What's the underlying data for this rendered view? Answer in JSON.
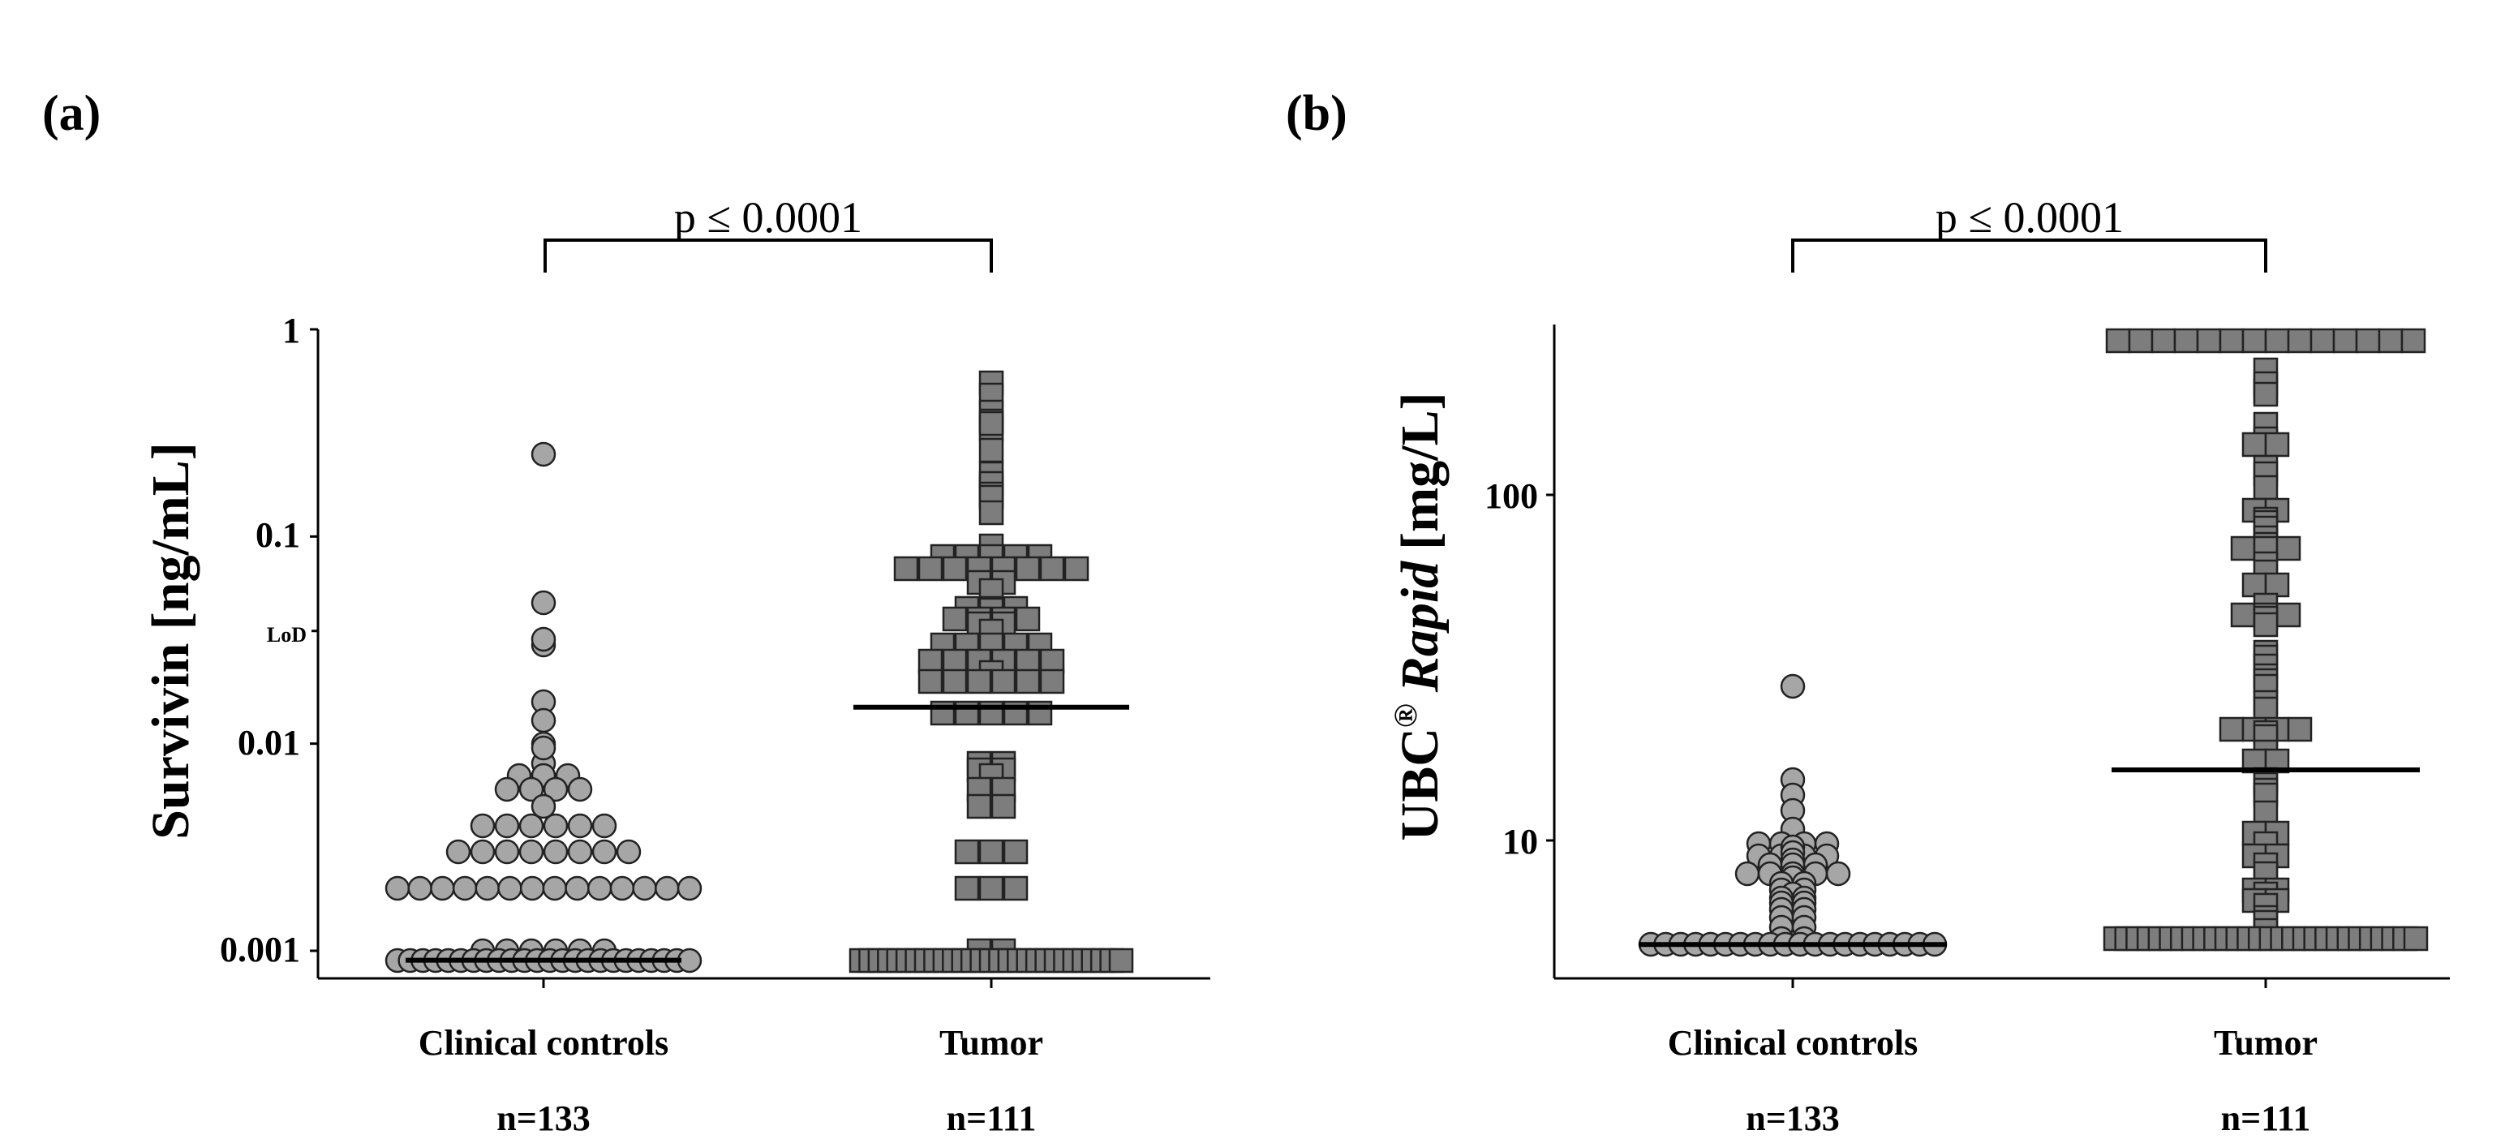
{
  "chart_data": [
    {
      "type": "scatter",
      "panel_label": "(a)",
      "yscale": "log",
      "ylim": [
        0.0008,
        1
      ],
      "ylabel": "Survivin [ng/mL]",
      "yticks": [
        {
          "value": 1,
          "label": "1"
        },
        {
          "value": 0.1,
          "label": "0.1"
        },
        {
          "value": 0.01,
          "label": "0.01"
        },
        {
          "value": 0.001,
          "label": "0.001"
        }
      ],
      "lod": {
        "value": 0.035,
        "label": "LoD"
      },
      "significance": "p ≤ 0.0001",
      "groups": [
        {
          "name": "Clinical controls",
          "n_label": "n=133",
          "marker": "circle",
          "median": 0.0009,
          "values": [
            0.25,
            0.048,
            0.03,
            0.032,
            0.016,
            0.013,
            0.01,
            0.008,
            0.0095,
            0.007,
            0.007,
            0.007,
            0.006,
            0.006,
            0.006,
            0.006,
            0.005,
            0.004,
            0.004,
            0.004,
            0.004,
            0.004,
            0.004,
            0.003,
            0.003,
            0.003,
            0.003,
            0.003,
            0.003,
            0.003,
            0.003,
            0.002,
            0.002,
            0.002,
            0.002,
            0.002,
            0.002,
            0.002,
            0.002,
            0.002,
            0.002,
            0.002,
            0.002,
            0.002,
            0.002,
            0.001,
            0.001,
            0.001,
            0.001,
            0.001,
            0.001,
            0.0009,
            0.0009,
            0.0009,
            0.0009,
            0.0009,
            0.0009,
            0.0009,
            0.0009,
            0.0009,
            0.0009,
            0.0009,
            0.0009,
            0.0009,
            0.0009,
            0.0009,
            0.0009,
            0.0009,
            0.0009,
            0.0009,
            0.0009,
            0.0009,
            0.0009,
            0.0009,
            0.0009
          ]
        },
        {
          "name": "Tumor",
          "n_label": "n=111",
          "marker": "square",
          "median": 0.015,
          "values": [
            0.55,
            0.48,
            0.4,
            0.36,
            0.33,
            0.35,
            0.26,
            0.2,
            0.17,
            0.18,
            0.16,
            0.155,
            0.13,
            0.09,
            0.08,
            0.08,
            0.08,
            0.08,
            0.08,
            0.07,
            0.07,
            0.07,
            0.07,
            0.07,
            0.07,
            0.07,
            0.07,
            0.06,
            0.06,
            0.055,
            0.045,
            0.045,
            0.044,
            0.045,
            0.04,
            0.04,
            0.04,
            0.04,
            0.038,
            0.038,
            0.035,
            0.03,
            0.03,
            0.03,
            0.03,
            0.03,
            0.025,
            0.025,
            0.025,
            0.025,
            0.025,
            0.025,
            0.022,
            0.02,
            0.02,
            0.02,
            0.02,
            0.02,
            0.02,
            0.014,
            0.014,
            0.014,
            0.014,
            0.014,
            0.008,
            0.008,
            0.0075,
            0.0075,
            0.007,
            0.006,
            0.006,
            0.005,
            0.005,
            0.003,
            0.003,
            0.003,
            0.002,
            0.002,
            0.002,
            0.001,
            0.001,
            0.0009,
            0.0009,
            0.0009,
            0.0009,
            0.0009,
            0.0009,
            0.0009,
            0.0009,
            0.0009,
            0.0009,
            0.0009,
            0.0009,
            0.0009,
            0.0009,
            0.0009,
            0.0009,
            0.0009,
            0.0009,
            0.0009,
            0.0009,
            0.0009,
            0.0009,
            0.0009,
            0.0009,
            0.0009,
            0.0009,
            0.0009,
            0.0009,
            0.0009
          ]
        }
      ]
    },
    {
      "type": "scatter",
      "panel_label": "(b)",
      "yscale": "log",
      "ylim": [
        4,
        300
      ],
      "ylabel_main": "UBC",
      "ylabel_super": "®",
      "ylabel_italic": "Rapid",
      "ylabel_unit": "[mg/L]",
      "yticks": [
        {
          "value": 100,
          "label": "100"
        },
        {
          "value": 10,
          "label": "10"
        }
      ],
      "significance": "p ≤ 0.0001",
      "groups": [
        {
          "name": "Clinical controls",
          "n_label": "n=133",
          "marker": "circle",
          "median": 5,
          "values": [
            28,
            15,
            13.5,
            12.2,
            10.8,
            9.8,
            9.8,
            9,
            9,
            9,
            9.6,
            9.8,
            9.8,
            9.2,
            9,
            8.8,
            8.5,
            8.5,
            8.5,
            8,
            8,
            8,
            8,
            8,
            7.8,
            7.5,
            7.2,
            7,
            6.8,
            6.6,
            6.6,
            6.8,
            7.2,
            7.5,
            6.3,
            6.3,
            6,
            6,
            5.6,
            5.6,
            5.2,
            5.2,
            5,
            5,
            5,
            5,
            5,
            5,
            5,
            5,
            5,
            5,
            5,
            5,
            5,
            5,
            5,
            5,
            5,
            5,
            5,
            5
          ]
        },
        {
          "name": "Tumor",
          "n_label": "n=111",
          "marker": "square",
          "median": 16,
          "values": [
            280,
            280,
            280,
            280,
            280,
            280,
            280,
            280,
            280,
            280,
            280,
            280,
            280,
            280,
            230,
            200,
            210,
            195,
            160,
            145,
            140,
            140,
            120,
            115,
            105,
            90,
            90,
            85,
            83,
            80,
            75,
            72,
            70,
            70,
            70,
            63,
            60,
            55,
            55,
            48,
            45,
            45,
            45,
            44,
            42,
            35,
            34,
            32,
            30,
            29,
            28,
            25,
            24,
            21,
            21,
            21,
            21,
            20.5,
            20,
            18,
            17,
            17,
            15,
            14.5,
            14,
            13.5,
            12,
            10.5,
            10.5,
            9.8,
            9,
            9,
            8.5,
            8,
            7.2,
            7.2,
            7,
            6.7,
            6.7,
            6.5,
            6,
            5.8,
            5.5,
            5.2,
            5.2,
            5.2,
            5.2,
            5.2,
            5.2,
            5.2,
            5.2,
            5.2,
            5.2,
            5.2,
            5.2,
            5.2,
            5.2,
            5.2,
            5.2,
            5.2,
            5.2,
            5.2,
            5.2,
            5.2,
            5.2,
            5.2,
            5.2,
            5.2,
            5.2,
            5.2,
            5.2
          ]
        }
      ]
    }
  ]
}
